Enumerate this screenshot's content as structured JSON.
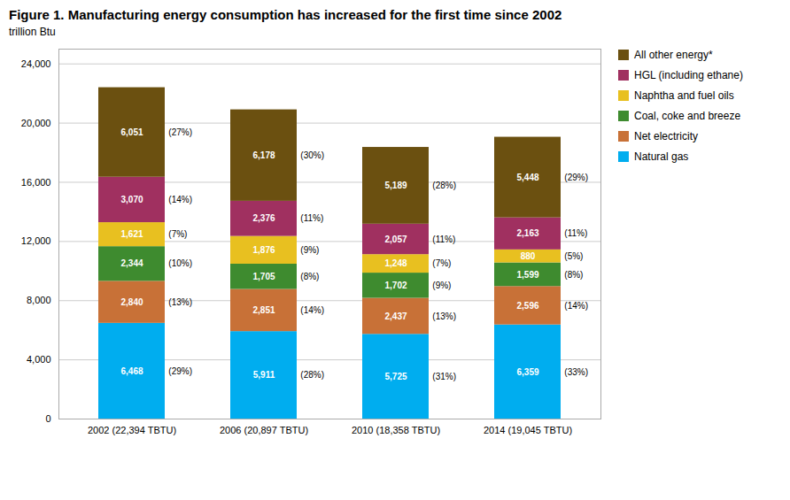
{
  "chart_data": {
    "type": "bar",
    "stacked": true,
    "title": "Figure 1. Manufacturing energy consumption has increased for the first time since 2002",
    "ylabel": "trillion Btu",
    "categories": [
      "2002 (22,394 TBTU)",
      "2006 (20,897 TBTU)",
      "2010 (18,358 TBTU)",
      "2014 (19,045 TBTU)"
    ],
    "series": [
      {
        "name": "Natural gas",
        "color": "#00ADEF",
        "values": [
          6468,
          5911,
          5725,
          6359
        ],
        "value_labels": [
          "6,468",
          "5,911",
          "5,725",
          "6,359"
        ],
        "percentage_labels": [
          "(29%)",
          "(28%)",
          "(31%)",
          "(33%)"
        ]
      },
      {
        "name": "Net electricity",
        "color": "#C87137",
        "values": [
          2840,
          2851,
          2437,
          2596
        ],
        "value_labels": [
          "2,840",
          "2,851",
          "2,437",
          "2,596"
        ],
        "percentage_labels": [
          "(13%)",
          "(14%)",
          "(13%)",
          "(14%)"
        ]
      },
      {
        "name": "Coal, coke and breeze",
        "color": "#3E8B2F",
        "values": [
          2344,
          1705,
          1702,
          1599
        ],
        "value_labels": [
          "2,344",
          "1,705",
          "1,702",
          "1,599"
        ],
        "percentage_labels": [
          "(10%)",
          "(8%)",
          "(9%)",
          "(8%)"
        ]
      },
      {
        "name": "Naphtha and fuel oils",
        "color": "#E8C020",
        "values": [
          1621,
          1876,
          1248,
          880
        ],
        "value_labels": [
          "1,621",
          "1,876",
          "1,248",
          "880"
        ],
        "percentage_labels": [
          "(7%)",
          "(9%)",
          "(7%)",
          "(5%)"
        ]
      },
      {
        "name": "HGL (including ethane)",
        "color": "#A03060",
        "values": [
          3070,
          2376,
          2057,
          2163
        ],
        "value_labels": [
          "3,070",
          "2,376",
          "2,057",
          "2,163"
        ],
        "percentage_labels": [
          "(14%)",
          "(11%)",
          "(11%)",
          "(11%)"
        ]
      },
      {
        "name": "All other energy*",
        "color": "#6B5010",
        "values": [
          6051,
          6178,
          5189,
          5448
        ],
        "value_labels": [
          "6,051",
          "6,178",
          "5,189",
          "5,448"
        ],
        "percentage_labels": [
          "(27%)",
          "(30%)",
          "(28%)",
          "(29%)"
        ]
      }
    ],
    "ylim": [
      0,
      25000
    ],
    "yticks": [
      0,
      {
        "value": 4000,
        "label": "4,000"
      },
      {
        "value": 8000,
        "label": "8,000"
      },
      {
        "value": 12000,
        "label": "12,000"
      },
      {
        "value": 16000,
        "label": "16,000"
      },
      {
        "value": 20000,
        "label": "20,000"
      },
      {
        "value": 24000,
        "label": "24,000"
      }
    ],
    "grid": true,
    "legend": "right",
    "data_labels": true
  }
}
